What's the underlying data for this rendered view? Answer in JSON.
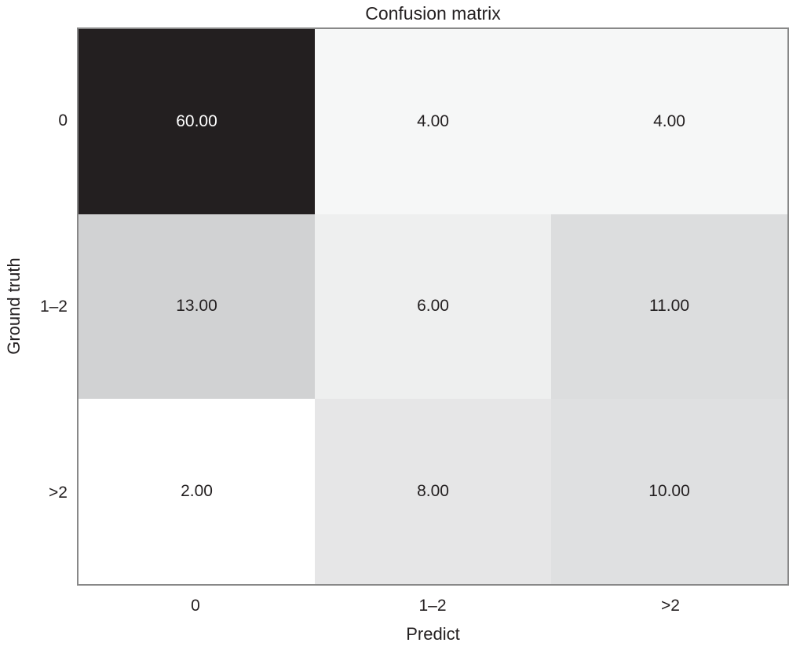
{
  "title": "Confusion matrix",
  "axes": {
    "x_label": "Predict",
    "y_label": "Ground truth",
    "x_ticks": [
      "0",
      "1–2",
      ">2"
    ],
    "y_ticks": [
      "0",
      "1–2",
      ">2"
    ]
  },
  "cells": [
    {
      "label": "60.00",
      "style": "background:#231f20;color:#ffffff"
    },
    {
      "label": "4.00",
      "style": "background:#f6f7f7;color:#231f20"
    },
    {
      "label": "4.00",
      "style": "background:#f6f7f7;color:#231f20"
    },
    {
      "label": "13.00",
      "style": "background:#d1d2d3;color:#231f20"
    },
    {
      "label": "6.00",
      "style": "background:#eeefef;color:#231f20"
    },
    {
      "label": "11.00",
      "style": "background:#dcddde;color:#231f20"
    },
    {
      "label": "2.00",
      "style": "background:#ffffff;color:#231f20"
    },
    {
      "label": "8.00",
      "style": "background:#e6e6e7;color:#231f20"
    },
    {
      "label": "10.00",
      "style": "background:#dfe0e1;color:#231f20"
    }
  ],
  "colors": {
    "max_cell": "#231f20",
    "min_cell": "#ffffff",
    "text_dark": "#231f20",
    "text_light": "#ffffff",
    "spine": "#888888",
    "background": "#ffffff"
  },
  "chart_data": {
    "type": "heatmap",
    "title": "Confusion matrix",
    "xlabel": "Predict",
    "ylabel": "Ground truth",
    "x_categories": [
      "0",
      "1–2",
      ">2"
    ],
    "y_categories": [
      "0",
      "1–2",
      ">2"
    ],
    "values": [
      [
        60,
        4,
        4
      ],
      [
        13,
        6,
        11
      ],
      [
        2,
        8,
        10
      ]
    ],
    "value_format": "%.2f",
    "colormap": "grayscale, higher value = darker cell",
    "value_range": [
      2,
      60
    ],
    "grid": false,
    "legend": "none",
    "cell_colors": [
      [
        "#231f20",
        "#f6f7f7",
        "#f6f7f7"
      ],
      [
        "#d1d2d3",
        "#eeefef",
        "#dcddde"
      ],
      [
        "#ffffff",
        "#e6e6e7",
        "#dfe0e1"
      ]
    ]
  }
}
